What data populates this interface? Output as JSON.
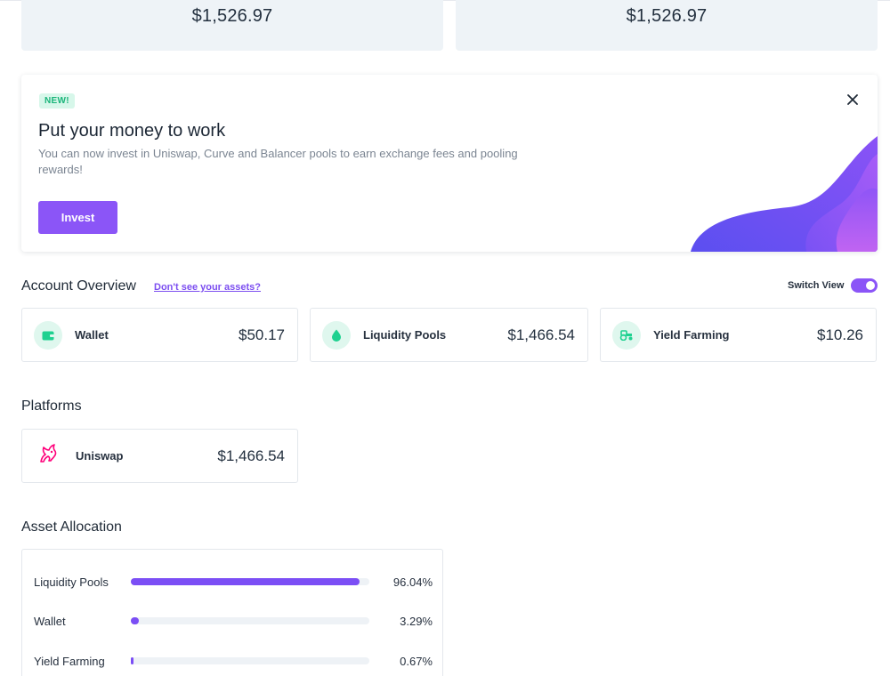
{
  "stats": {
    "left_value": "$1,526.97",
    "right_value": "$1,526.97"
  },
  "promo": {
    "badge": "NEW!",
    "title": "Put your money to work",
    "description": "You can now invest in Uniswap, Curve and Balancer pools to earn exchange fees and pooling rewards!",
    "button_label": "Invest",
    "close_icon": "close-icon"
  },
  "overview": {
    "title": "Account Overview",
    "link": "Don't see your assets?",
    "switch_label": "Switch View",
    "switch_on": true,
    "cards": [
      {
        "label": "Wallet",
        "value": "$50.17",
        "icon": "wallet-icon"
      },
      {
        "label": "Liquidity Pools",
        "value": "$1,466.54",
        "icon": "droplet-icon"
      },
      {
        "label": "Yield Farming",
        "value": "$10.26",
        "icon": "tractor-icon"
      }
    ]
  },
  "platforms": {
    "title": "Platforms",
    "items": [
      {
        "label": "Uniswap",
        "value": "$1,466.54",
        "icon": "uniswap-unicorn-icon"
      }
    ]
  },
  "allocation": {
    "title": "Asset Allocation",
    "rows": [
      {
        "label": "Liquidity Pools",
        "percent_text": "96.04%",
        "fraction": 0.9604
      },
      {
        "label": "Wallet",
        "percent_text": "3.29%",
        "fraction": 0.0329
      },
      {
        "label": "Yield Farming",
        "percent_text": "0.67%",
        "fraction": 0.0067
      }
    ]
  },
  "colors": {
    "accent": "#8b55f7",
    "badge_bg": "#d7f7ea",
    "badge_text": "#1bb57a",
    "icon_bg": "#dff7ee",
    "icon_green": "#1ed190",
    "uniswap_pink": "#ff007a"
  }
}
